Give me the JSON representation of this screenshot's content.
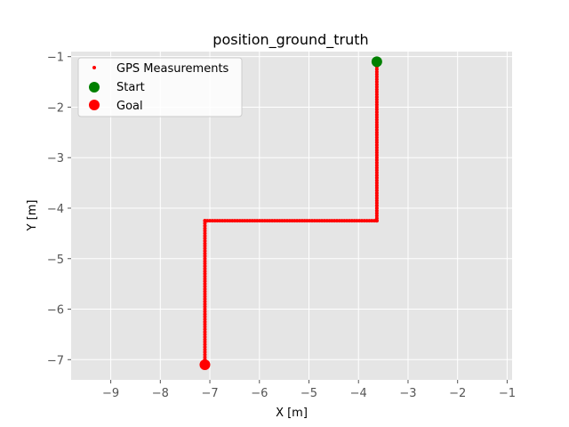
{
  "chart_data": {
    "type": "scatter",
    "title": "position_ground_truth",
    "xlabel": "X [m]",
    "ylabel": "Y [m]",
    "xlim": [
      -9.8,
      -0.9
    ],
    "ylim": [
      -7.4,
      -0.9
    ],
    "xticks": [
      -9,
      -8,
      -7,
      -6,
      -5,
      -4,
      -3,
      -2,
      -1
    ],
    "yticks": [
      -1,
      -2,
      -3,
      -4,
      -5,
      -6,
      -7
    ],
    "grid": true,
    "legend_position": "top-left",
    "background": "#e5e5e5",
    "series": [
      {
        "name": "GPS Measurements",
        "marker": "small-dot",
        "color": "#ff0000",
        "path": [
          [
            -3.63,
            -1.1
          ],
          [
            -3.63,
            -4.25
          ],
          [
            -7.1,
            -4.25
          ],
          [
            -7.1,
            -7.1
          ]
        ]
      },
      {
        "name": "Start",
        "marker": "large-dot",
        "color": "#008000",
        "points": [
          [
            -3.63,
            -1.1
          ]
        ]
      },
      {
        "name": "Goal",
        "marker": "large-dot",
        "color": "#ff0000",
        "points": [
          [
            -7.1,
            -7.1
          ]
        ]
      }
    ]
  }
}
